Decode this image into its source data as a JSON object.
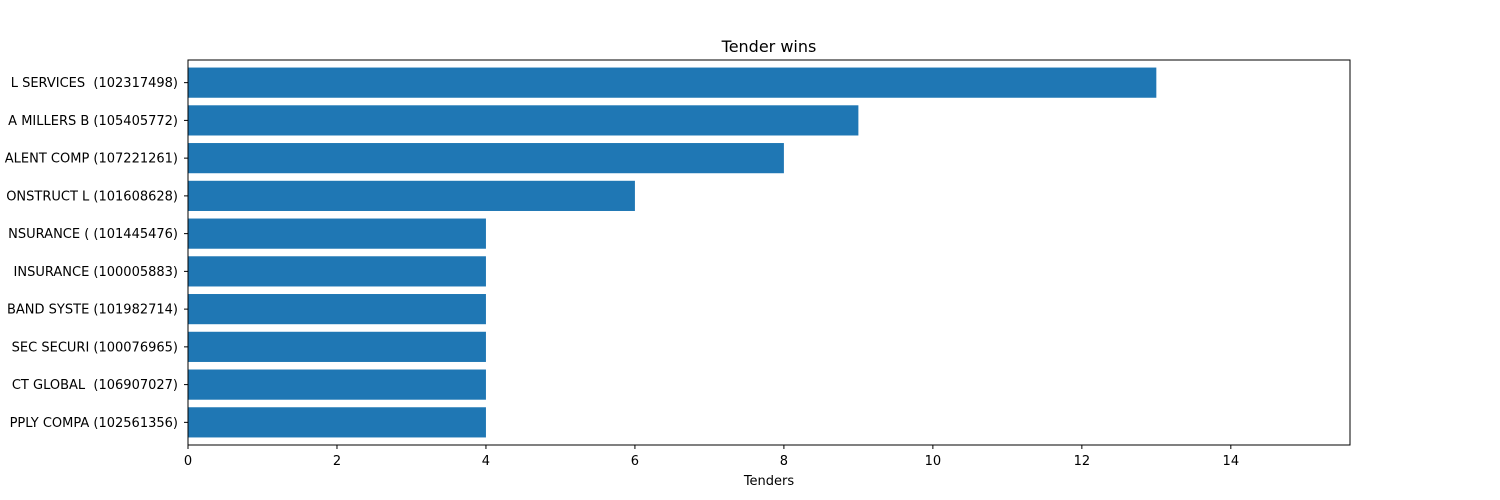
{
  "chart_data": {
    "type": "bar",
    "orientation": "horizontal",
    "title": "Tender wins",
    "xlabel": "Tenders",
    "ylabel": "",
    "xlim": [
      0,
      15.6
    ],
    "x_ticks": [
      0,
      2,
      4,
      6,
      8,
      10,
      12,
      14
    ],
    "grid": false,
    "bar_color": "#1f77b4",
    "categories": [
      "L SERVICES  (102317498)",
      "A MILLERS B (105405772)",
      "ALENT COMP (107221261)",
      "ONSTRUCT L (101608628)",
      "NSURANCE ( (101445476)",
      " INSURANCE (100005883)",
      "BAND SYSTE (101982714)",
      "SEC SECURI (100076965)",
      "CT GLOBAL  (106907027)",
      "PPLY COMPA (102561356)"
    ],
    "values": [
      13,
      9,
      8,
      6,
      4,
      4,
      4,
      4,
      4,
      4
    ]
  }
}
